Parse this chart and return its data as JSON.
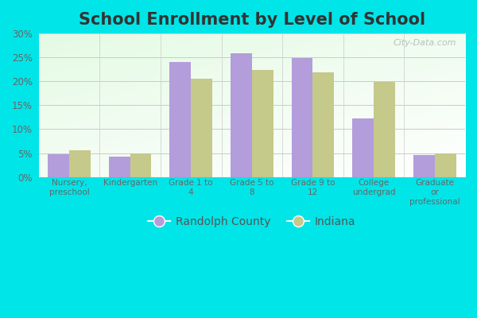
{
  "title": "School Enrollment by Level of School",
  "categories": [
    "Nursery,\npreschool",
    "Kindergarten",
    "Grade 1 to\n4",
    "Grade 5 to\n8",
    "Grade 9 to\n12",
    "College\nundergrad",
    "Graduate\nor\nprofessional"
  ],
  "randolph_values": [
    4.8,
    4.2,
    24.0,
    25.8,
    24.9,
    12.3,
    4.6
  ],
  "indiana_values": [
    5.6,
    4.9,
    20.6,
    22.3,
    21.9,
    19.8,
    4.9
  ],
  "randolph_color": "#b39ddb",
  "indiana_color": "#c5c98a",
  "outer_background": "#00e5e8",
  "ylim": [
    0,
    30
  ],
  "yticks": [
    0,
    5,
    10,
    15,
    20,
    25,
    30
  ],
  "legend_labels": [
    "Randolph County",
    "Indiana"
  ],
  "bar_width": 0.35,
  "title_fontsize": 15,
  "watermark": "City-Data.com"
}
